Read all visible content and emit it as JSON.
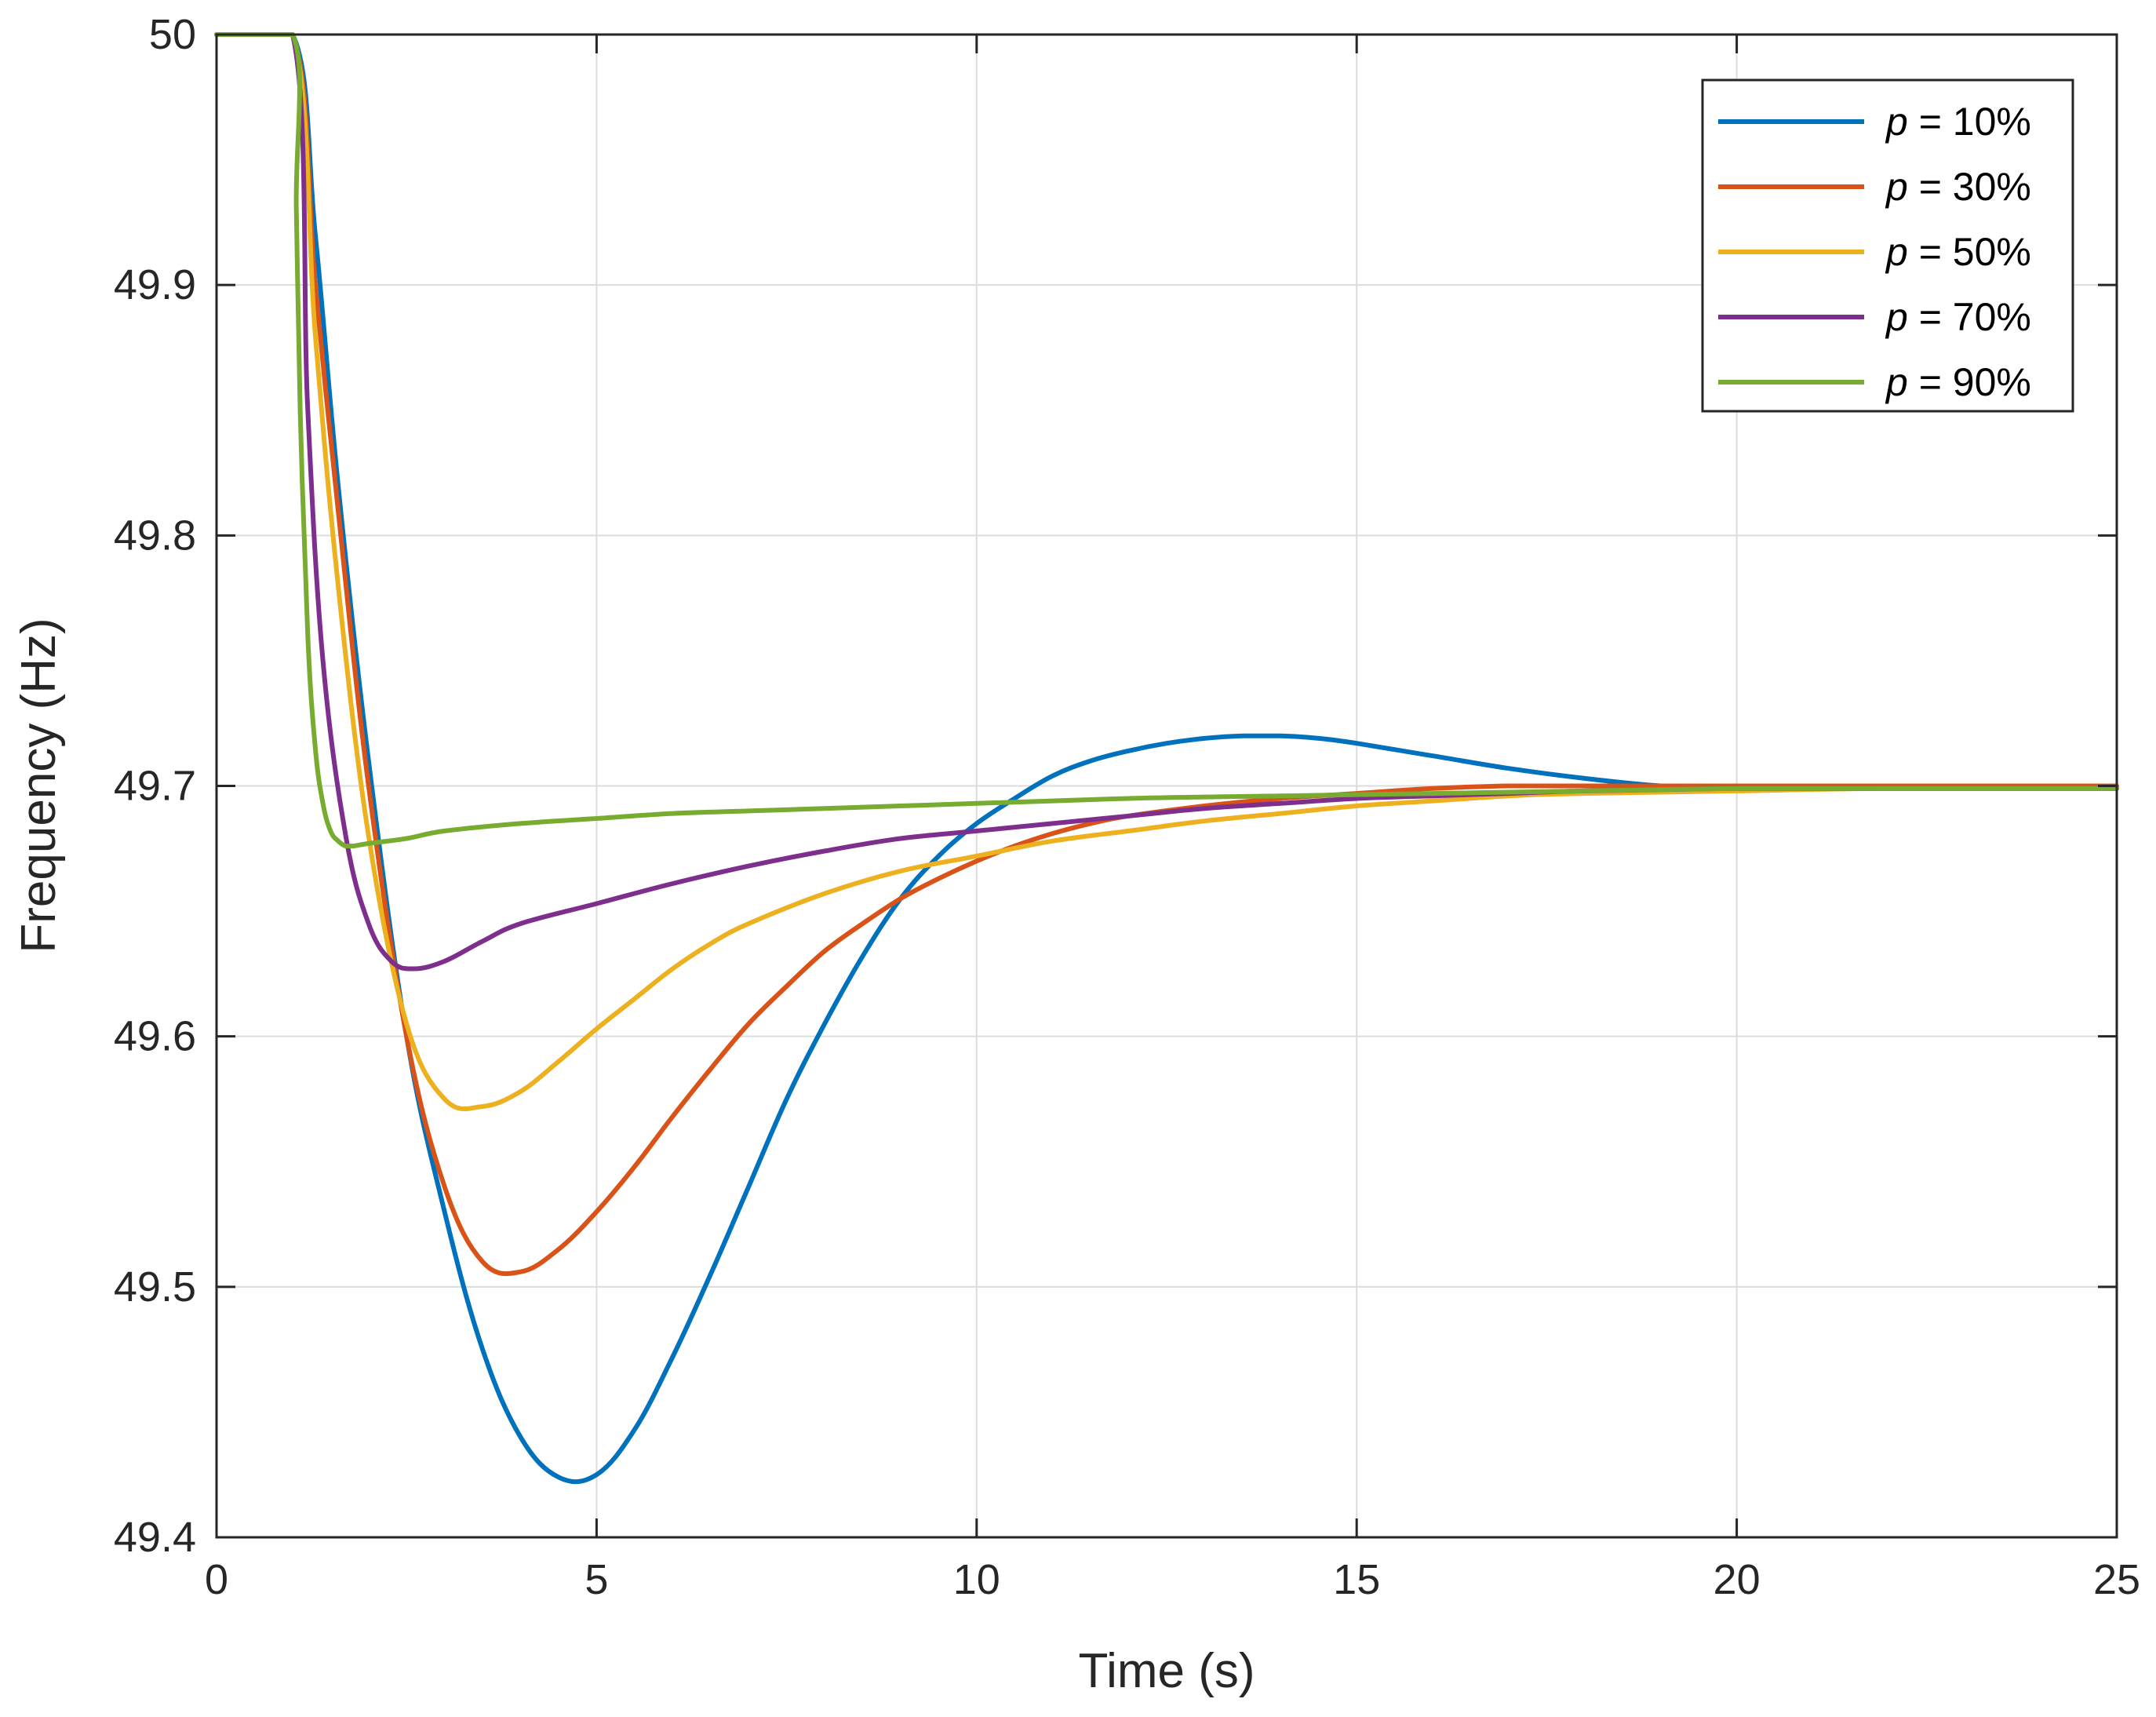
{
  "chart_data": {
    "type": "line",
    "title": "",
    "xlabel": "Time (s)",
    "ylabel": "Frequency (Hz)",
    "xlim": [
      0,
      25
    ],
    "ylim": [
      49.4,
      50
    ],
    "xticks": [
      0,
      5,
      10,
      15,
      20,
      25
    ],
    "xtick_labels": [
      "0",
      "5",
      "10",
      "15",
      "20",
      "25"
    ],
    "yticks": [
      49.4,
      49.5,
      49.6,
      49.7,
      49.8,
      49.9,
      50
    ],
    "ytick_labels": [
      "49.4",
      "49.5",
      "49.6",
      "49.7",
      "49.8",
      "49.9",
      "50"
    ],
    "grid": true,
    "legend_position": "top-right",
    "series": [
      {
        "name": "p = 10%",
        "legend_var": "p",
        "legend_rest": " = 10%",
        "color": "#0072BD",
        "x": [
          0,
          1,
          1.3,
          1.6,
          2.0,
          2.5,
          3.0,
          3.5,
          4.0,
          4.5,
          5.0,
          5.5,
          6.0,
          6.5,
          7.0,
          7.5,
          8.0,
          8.5,
          9.0,
          9.5,
          10.0,
          10.5,
          11.0,
          11.5,
          12.0,
          12.5,
          13.0,
          13.5,
          14.0,
          14.5,
          15.0,
          16.0,
          17.0,
          18.0,
          19.0,
          20.0,
          21.0,
          22.0,
          25.0
        ],
        "values": [
          50,
          50,
          49.92,
          49.82,
          49.71,
          49.6,
          49.53,
          49.475,
          49.44,
          49.424,
          49.425,
          49.443,
          49.472,
          49.505,
          49.54,
          49.575,
          49.605,
          49.632,
          49.655,
          49.672,
          49.685,
          49.695,
          49.704,
          49.71,
          49.714,
          49.717,
          49.719,
          49.72,
          49.72,
          49.719,
          49.717,
          49.712,
          49.707,
          49.703,
          49.7,
          49.699,
          49.699,
          49.699,
          49.699
        ]
      },
      {
        "name": "p = 30%",
        "legend_var": "p",
        "legend_rest": " = 30%",
        "color": "#D95319",
        "x": [
          0,
          1,
          1.3,
          1.6,
          2.0,
          2.5,
          3.0,
          3.5,
          4.0,
          4.5,
          5.0,
          5.5,
          6.0,
          6.5,
          7.0,
          7.5,
          8.0,
          8.5,
          9.0,
          9.5,
          10.0,
          10.5,
          11.0,
          11.5,
          12.0,
          13.0,
          14.0,
          15.0,
          16.0,
          17.0,
          18.0,
          20.0,
          22.0,
          25.0
        ],
        "values": [
          50,
          50,
          49.9,
          49.81,
          49.7,
          49.6,
          49.54,
          49.51,
          49.506,
          49.515,
          49.53,
          49.548,
          49.568,
          49.587,
          49.605,
          49.62,
          49.634,
          49.645,
          49.655,
          49.663,
          49.67,
          49.676,
          49.681,
          49.685,
          49.688,
          49.692,
          49.695,
          49.697,
          49.699,
          49.7,
          49.7,
          49.7,
          49.7,
          49.7
        ]
      },
      {
        "name": "p = 50%",
        "legend_var": "p",
        "legend_rest": " = 50%",
        "color": "#EDB120",
        "x": [
          0,
          1,
          1.3,
          1.6,
          2.0,
          2.5,
          3.0,
          3.5,
          4.0,
          4.5,
          5.0,
          5.5,
          6.0,
          6.5,
          7.0,
          8.0,
          9.0,
          10.0,
          11.0,
          12.0,
          13.0,
          14.0,
          15.0,
          16.0,
          17.0,
          18.0,
          20.0,
          22.0,
          25.0
        ],
        "values": [
          50,
          50,
          49.88,
          49.78,
          49.68,
          49.605,
          49.575,
          49.572,
          49.578,
          49.59,
          49.603,
          49.615,
          49.627,
          49.637,
          49.645,
          49.657,
          49.666,
          49.672,
          49.678,
          49.682,
          49.686,
          49.689,
          49.692,
          49.694,
          49.696,
          49.697,
          49.698,
          49.699,
          49.699
        ]
      },
      {
        "name": "p = 70%",
        "legend_var": "p",
        "legend_rest": " = 70%",
        "color": "#7E2F8E",
        "x": [
          0,
          1,
          1.2,
          1.4,
          1.7,
          2.0,
          2.3,
          2.6,
          3.0,
          3.5,
          4.0,
          5.0,
          6.0,
          7.0,
          8.0,
          9.0,
          10.0,
          11.0,
          12.0,
          13.0,
          14.0,
          15.0,
          16.0,
          17.0,
          18.0,
          20.0,
          22.0,
          25.0
        ],
        "values": [
          50,
          50,
          49.85,
          49.75,
          49.68,
          49.645,
          49.63,
          49.627,
          49.63,
          49.638,
          49.645,
          49.653,
          49.661,
          49.668,
          49.674,
          49.679,
          49.682,
          49.685,
          49.688,
          49.691,
          49.693,
          49.695,
          49.696,
          49.697,
          49.698,
          49.699,
          49.699,
          49.699
        ]
      },
      {
        "name": "p = 90%",
        "legend_var": "p",
        "legend_rest": " = 90%",
        "color": "#77AC30",
        "x": [
          0,
          1,
          1.05,
          1.1,
          1.2,
          1.3,
          1.4,
          1.5,
          1.6,
          1.7,
          1.8,
          2.0,
          2.5,
          3.0,
          4.0,
          5.0,
          6.0,
          7.0,
          8.0,
          9.0,
          10.0,
          12.0,
          14.0,
          16.0,
          18.0,
          20.0,
          22.0,
          25.0
        ],
        "values": [
          50,
          50,
          49.93,
          49.85,
          49.76,
          49.715,
          49.693,
          49.682,
          49.678,
          49.676,
          49.676,
          49.677,
          49.679,
          49.682,
          49.685,
          49.687,
          49.689,
          49.69,
          49.691,
          49.692,
          49.693,
          49.695,
          49.696,
          49.697,
          49.698,
          49.699,
          49.699,
          49.699
        ]
      }
    ]
  }
}
